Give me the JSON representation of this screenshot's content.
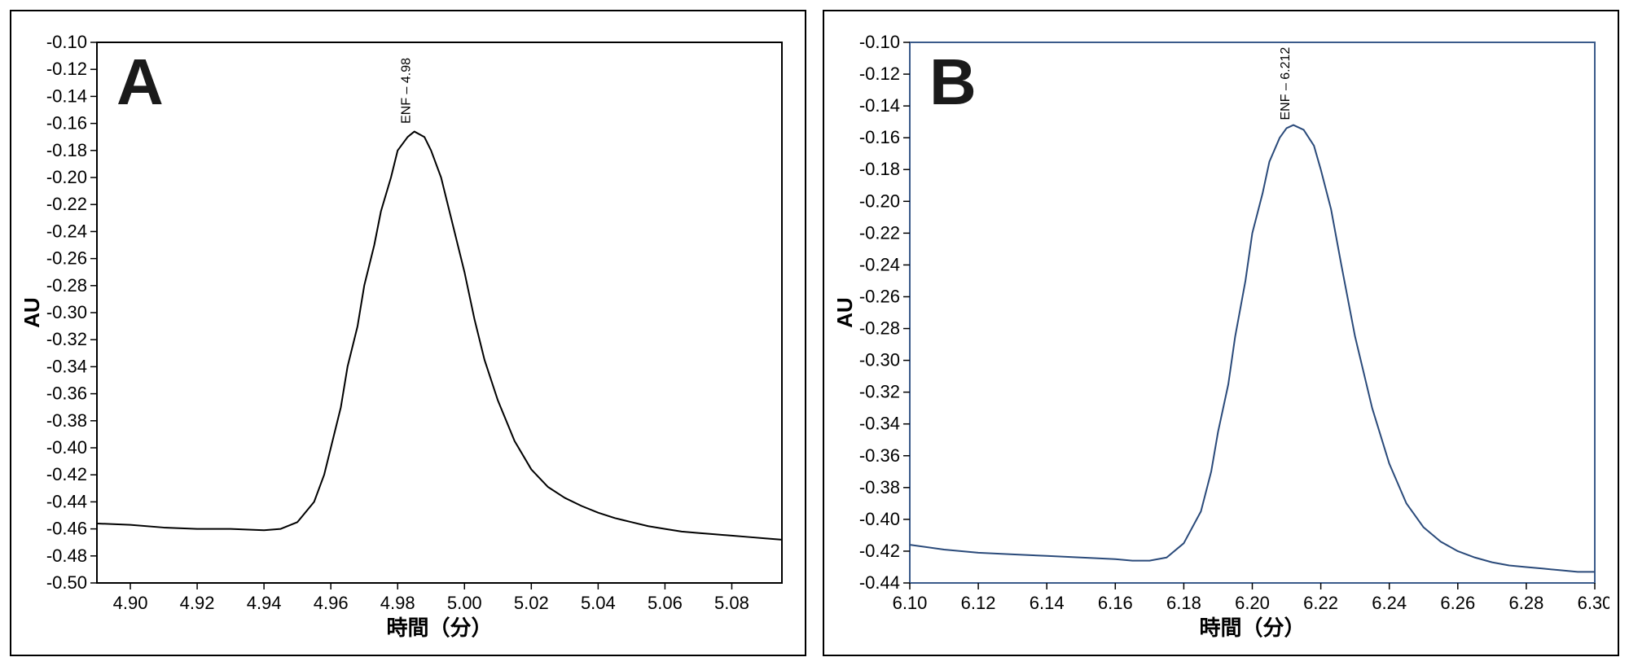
{
  "panels": [
    {
      "letter": "A",
      "border_color": "#000000",
      "xlabel": "時間（分）",
      "ylabel": "AU",
      "xlim": [
        4.89,
        5.095
      ],
      "ylim": [
        -0.5,
        -0.1
      ],
      "xticks": [
        4.9,
        4.92,
        4.94,
        4.96,
        4.98,
        5.0,
        5.02,
        5.04,
        5.06,
        5.08
      ],
      "xtick_labels": [
        "4.90",
        "4.92",
        "4.94",
        "4.96",
        "4.98",
        "5.00",
        "5.02",
        "5.04",
        "5.06",
        "5.08"
      ],
      "yticks": [
        -0.5,
        -0.48,
        -0.46,
        -0.44,
        -0.42,
        -0.4,
        -0.38,
        -0.36,
        -0.34,
        -0.32,
        -0.3,
        -0.28,
        -0.26,
        -0.24,
        -0.22,
        -0.2,
        -0.18,
        -0.16,
        -0.14,
        -0.12,
        -0.1
      ],
      "ytick_labels": [
        "-0.50",
        "-0.48",
        "-0.46",
        "-0.44",
        "-0.42",
        "-0.40",
        "-0.38",
        "-0.36",
        "-0.34",
        "-0.32",
        "-0.30",
        "-0.28",
        "-0.26",
        "-0.24",
        "-0.22",
        "-0.20",
        "-0.18",
        "-0.16",
        "-0.14",
        "-0.12",
        "-0.10"
      ],
      "line_color": "#000000",
      "line_width": 2,
      "peak_label": "ENF – 4.98",
      "peak_x": 4.985,
      "peak_y": -0.165,
      "data": [
        [
          4.89,
          -0.456
        ],
        [
          4.9,
          -0.457
        ],
        [
          4.91,
          -0.459
        ],
        [
          4.92,
          -0.46
        ],
        [
          4.93,
          -0.46
        ],
        [
          4.94,
          -0.461
        ],
        [
          4.945,
          -0.46
        ],
        [
          4.95,
          -0.455
        ],
        [
          4.955,
          -0.44
        ],
        [
          4.958,
          -0.42
        ],
        [
          4.96,
          -0.4
        ],
        [
          4.963,
          -0.37
        ],
        [
          4.965,
          -0.34
        ],
        [
          4.968,
          -0.31
        ],
        [
          4.97,
          -0.28
        ],
        [
          4.973,
          -0.25
        ],
        [
          4.975,
          -0.225
        ],
        [
          4.978,
          -0.2
        ],
        [
          4.98,
          -0.18
        ],
        [
          4.983,
          -0.17
        ],
        [
          4.985,
          -0.166
        ],
        [
          4.988,
          -0.17
        ],
        [
          4.99,
          -0.18
        ],
        [
          4.993,
          -0.2
        ],
        [
          4.996,
          -0.23
        ],
        [
          5.0,
          -0.27
        ],
        [
          5.003,
          -0.305
        ],
        [
          5.006,
          -0.335
        ],
        [
          5.01,
          -0.365
        ],
        [
          5.015,
          -0.395
        ],
        [
          5.02,
          -0.416
        ],
        [
          5.025,
          -0.429
        ],
        [
          5.03,
          -0.437
        ],
        [
          5.035,
          -0.443
        ],
        [
          5.04,
          -0.448
        ],
        [
          5.045,
          -0.452
        ],
        [
          5.05,
          -0.455
        ],
        [
          5.055,
          -0.458
        ],
        [
          5.06,
          -0.46
        ],
        [
          5.065,
          -0.462
        ],
        [
          5.07,
          -0.463
        ],
        [
          5.075,
          -0.464
        ],
        [
          5.08,
          -0.465
        ],
        [
          5.085,
          -0.466
        ],
        [
          5.09,
          -0.467
        ],
        [
          5.095,
          -0.468
        ]
      ],
      "plot_bg": "#ffffff",
      "tick_fontsize": 22,
      "label_fontsize": 26,
      "letter_fontsize": 80
    },
    {
      "letter": "B",
      "border_color": "#3a5a8a",
      "xlabel": "時間（分）",
      "ylabel": "AU",
      "xlim": [
        6.1,
        6.3
      ],
      "ylim": [
        -0.44,
        -0.1
      ],
      "xticks": [
        6.1,
        6.12,
        6.14,
        6.16,
        6.18,
        6.2,
        6.22,
        6.24,
        6.26,
        6.28,
        6.3
      ],
      "xtick_labels": [
        "6.10",
        "6.12",
        "6.14",
        "6.16",
        "6.18",
        "6.20",
        "6.22",
        "6.24",
        "6.26",
        "6.28",
        "6.30"
      ],
      "yticks": [
        -0.44,
        -0.42,
        -0.4,
        -0.38,
        -0.36,
        -0.34,
        -0.32,
        -0.3,
        -0.28,
        -0.26,
        -0.24,
        -0.22,
        -0.2,
        -0.18,
        -0.16,
        -0.14,
        -0.12,
        -0.1
      ],
      "ytick_labels": [
        "-0.44",
        "-0.42",
        "-0.40",
        "-0.38",
        "-0.36",
        "-0.34",
        "-0.32",
        "-0.30",
        "-0.28",
        "-0.26",
        "-0.24",
        "-0.22",
        "-0.20",
        "-0.18",
        "-0.16",
        "-0.14",
        "-0.12",
        "-0.10"
      ],
      "line_color": "#2a4a7a",
      "line_width": 2,
      "peak_label": "ENF – 6.212",
      "peak_x": 6.212,
      "peak_y": -0.153,
      "data": [
        [
          6.1,
          -0.416
        ],
        [
          6.11,
          -0.419
        ],
        [
          6.12,
          -0.421
        ],
        [
          6.13,
          -0.422
        ],
        [
          6.14,
          -0.423
        ],
        [
          6.15,
          -0.424
        ],
        [
          6.16,
          -0.425
        ],
        [
          6.165,
          -0.426
        ],
        [
          6.17,
          -0.426
        ],
        [
          6.175,
          -0.424
        ],
        [
          6.18,
          -0.415
        ],
        [
          6.185,
          -0.395
        ],
        [
          6.188,
          -0.37
        ],
        [
          6.19,
          -0.345
        ],
        [
          6.193,
          -0.315
        ],
        [
          6.195,
          -0.285
        ],
        [
          6.198,
          -0.25
        ],
        [
          6.2,
          -0.22
        ],
        [
          6.203,
          -0.195
        ],
        [
          6.205,
          -0.175
        ],
        [
          6.208,
          -0.16
        ],
        [
          6.21,
          -0.154
        ],
        [
          6.212,
          -0.152
        ],
        [
          6.215,
          -0.155
        ],
        [
          6.218,
          -0.165
        ],
        [
          6.22,
          -0.18
        ],
        [
          6.223,
          -0.205
        ],
        [
          6.226,
          -0.24
        ],
        [
          6.23,
          -0.285
        ],
        [
          6.235,
          -0.33
        ],
        [
          6.24,
          -0.365
        ],
        [
          6.245,
          -0.39
        ],
        [
          6.25,
          -0.405
        ],
        [
          6.255,
          -0.414
        ],
        [
          6.26,
          -0.42
        ],
        [
          6.265,
          -0.424
        ],
        [
          6.27,
          -0.427
        ],
        [
          6.275,
          -0.429
        ],
        [
          6.28,
          -0.43
        ],
        [
          6.285,
          -0.431
        ],
        [
          6.29,
          -0.432
        ],
        [
          6.295,
          -0.433
        ],
        [
          6.3,
          -0.433
        ]
      ],
      "plot_bg": "#ffffff",
      "tick_fontsize": 22,
      "label_fontsize": 26,
      "letter_fontsize": 80
    }
  ]
}
